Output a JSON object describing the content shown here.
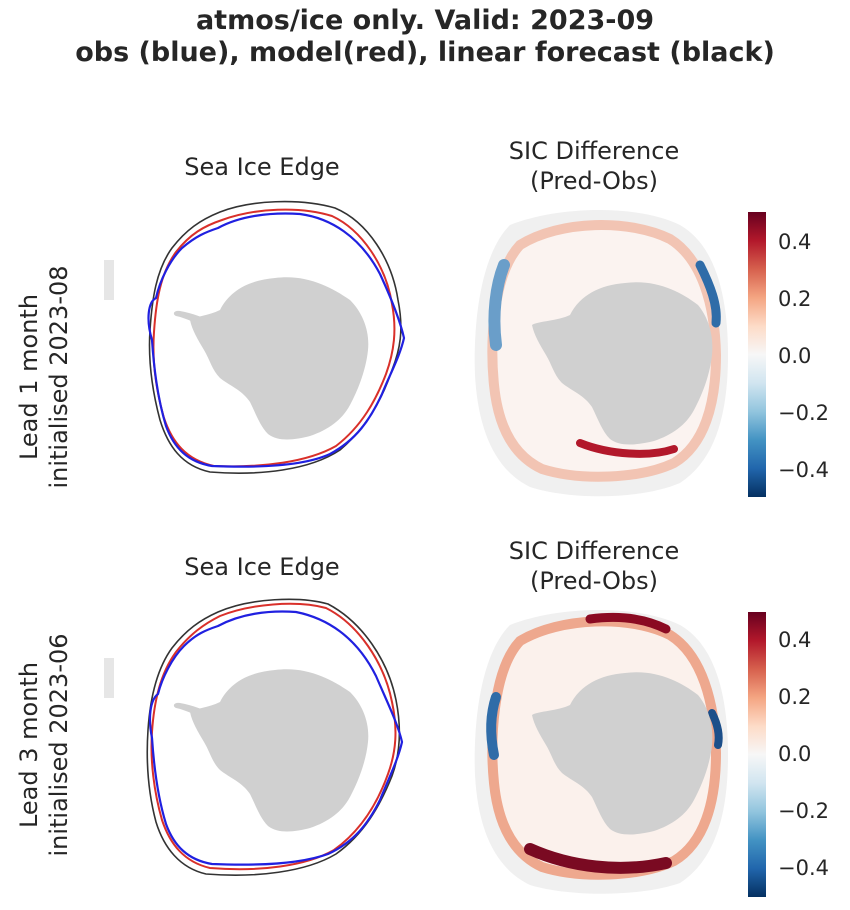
{
  "title": {
    "line1": "atmos/ice only. Valid: 2023-09",
    "line2": "obs (blue), model(red), linear forecast (black)"
  },
  "rows": [
    {
      "label_line1": "Lead 1 month",
      "label_line2": "initialised 2023-08",
      "left_title": "Sea Ice Edge",
      "right_title_line1": "SIC Difference",
      "right_title_line2": "(Pred-Obs)"
    },
    {
      "label_line1": "Lead 3 month",
      "label_line2": "initialised 2023-06",
      "left_title": "Sea Ice Edge",
      "right_title_line1": "SIC Difference",
      "right_title_line2": "(Pred-Obs)"
    }
  ],
  "colorbar": {
    "ticks": [
      "0.4",
      "0.2",
      "0.0",
      "−0.2",
      "−0.4"
    ],
    "colormap": [
      "#053061",
      "#2166ac",
      "#4393c3",
      "#92c5de",
      "#d1e5f0",
      "#f7f7f7",
      "#fddbc7",
      "#f4a582",
      "#d6604d",
      "#b2182b",
      "#67001f"
    ]
  },
  "colors": {
    "obs": "#2020e0",
    "model": "#d9302a",
    "linear_forecast": "#333333",
    "land": "#d0d0d0",
    "ocean_mask": "#f0f0f0"
  }
}
